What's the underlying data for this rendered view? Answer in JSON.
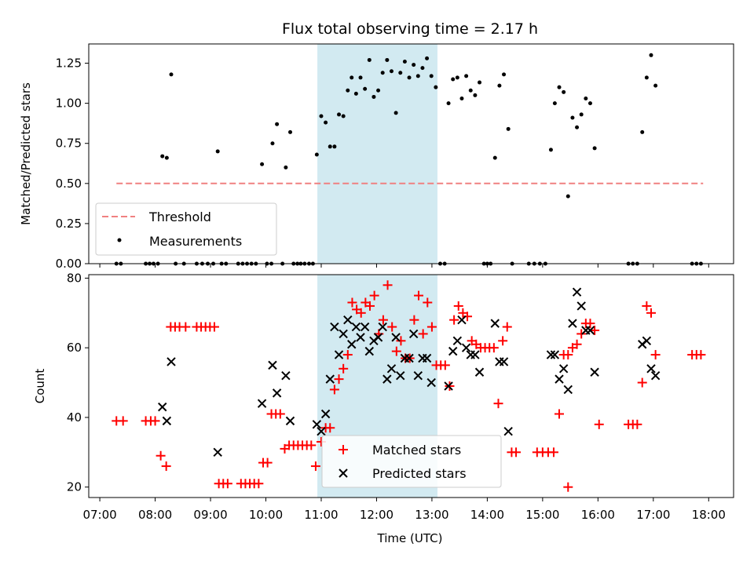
{
  "chart_data": {
    "type": "scatter",
    "title": "Flux total observing time = 2.17 h",
    "xlabel": "Time (UTC)",
    "x_ticks": [
      "07:00",
      "08:00",
      "09:00",
      "10:00",
      "11:00",
      "12:00",
      "13:00",
      "14:00",
      "15:00",
      "16:00",
      "17:00",
      "18:00"
    ],
    "xlim_hours": [
      6.8,
      18.45
    ],
    "highlight_span_hours": [
      10.93,
      13.1
    ],
    "colors": {
      "threshold": "#f08080",
      "matched": "#ff0000",
      "predicted": "#000000",
      "span": "#add8e6"
    },
    "top_panel": {
      "ylabel": "Matched/Predicted stars",
      "ylim": [
        0,
        1.37
      ],
      "y_ticks": [
        "0.00",
        "0.25",
        "0.50",
        "0.75",
        "1.00",
        "1.25"
      ],
      "threshold": {
        "name": "Threshold",
        "value": 0.5,
        "x_range": [
          7.3,
          17.9
        ]
      },
      "measurements_name": "Measurements",
      "measurements": [
        [
          7.3,
          0
        ],
        [
          7.38,
          0
        ],
        [
          7.83,
          0
        ],
        [
          7.9,
          0
        ],
        [
          7.97,
          0
        ],
        [
          8.05,
          0
        ],
        [
          8.13,
          0.67
        ],
        [
          8.21,
          0.66
        ],
        [
          8.29,
          1.18
        ],
        [
          8.37,
          0
        ],
        [
          8.52,
          0
        ],
        [
          8.75,
          0
        ],
        [
          8.85,
          0
        ],
        [
          8.95,
          0
        ],
        [
          9.05,
          0
        ],
        [
          9.13,
          0.7
        ],
        [
          9.2,
          0
        ],
        [
          9.28,
          0
        ],
        [
          9.5,
          0
        ],
        [
          9.58,
          0
        ],
        [
          9.66,
          0
        ],
        [
          9.74,
          0
        ],
        [
          9.82,
          0
        ],
        [
          9.93,
          0.62
        ],
        [
          10.02,
          0
        ],
        [
          10.1,
          0
        ],
        [
          10.12,
          0.75
        ],
        [
          10.2,
          0.87
        ],
        [
          10.3,
          0
        ],
        [
          10.36,
          0.6
        ],
        [
          10.44,
          0.82
        ],
        [
          10.5,
          0
        ],
        [
          10.57,
          0
        ],
        [
          10.63,
          0
        ],
        [
          10.7,
          0
        ],
        [
          10.78,
          0
        ],
        [
          10.85,
          0
        ],
        [
          10.92,
          0.68
        ],
        [
          11.0,
          0.92
        ],
        [
          11.08,
          0.88
        ],
        [
          11.16,
          0.73
        ],
        [
          11.24,
          0.73
        ],
        [
          11.32,
          0.93
        ],
        [
          11.4,
          0.92
        ],
        [
          11.48,
          1.08
        ],
        [
          11.55,
          1.16
        ],
        [
          11.63,
          1.06
        ],
        [
          11.71,
          1.16
        ],
        [
          11.79,
          1.09
        ],
        [
          11.87,
          1.27
        ],
        [
          11.95,
          1.04
        ],
        [
          12.03,
          1.08
        ],
        [
          12.11,
          1.19
        ],
        [
          12.19,
          1.27
        ],
        [
          12.27,
          1.2
        ],
        [
          12.35,
          0.94
        ],
        [
          12.43,
          1.19
        ],
        [
          12.51,
          1.26
        ],
        [
          12.59,
          1.16
        ],
        [
          12.67,
          1.24
        ],
        [
          12.75,
          1.17
        ],
        [
          12.83,
          1.22
        ],
        [
          12.91,
          1.28
        ],
        [
          12.99,
          1.17
        ],
        [
          13.07,
          1.1
        ],
        [
          13.15,
          0
        ],
        [
          13.23,
          0
        ],
        [
          13.3,
          1.0
        ],
        [
          13.38,
          1.15
        ],
        [
          13.46,
          1.16
        ],
        [
          13.54,
          1.03
        ],
        [
          13.62,
          1.17
        ],
        [
          13.7,
          1.08
        ],
        [
          13.78,
          1.05
        ],
        [
          13.86,
          1.13
        ],
        [
          13.94,
          0
        ],
        [
          14.0,
          0
        ],
        [
          14.06,
          0
        ],
        [
          14.14,
          0.66
        ],
        [
          14.22,
          1.11
        ],
        [
          14.3,
          1.18
        ],
        [
          14.38,
          0.84
        ],
        [
          14.45,
          0
        ],
        [
          14.75,
          0
        ],
        [
          14.85,
          0
        ],
        [
          14.95,
          0
        ],
        [
          15.05,
          0
        ],
        [
          15.15,
          0.71
        ],
        [
          15.22,
          1.0
        ],
        [
          15.3,
          1.1
        ],
        [
          15.38,
          1.07
        ],
        [
          15.46,
          0.42
        ],
        [
          15.54,
          0.91
        ],
        [
          15.62,
          0.85
        ],
        [
          15.7,
          0.93
        ],
        [
          15.78,
          1.03
        ],
        [
          15.86,
          1.0
        ],
        [
          15.94,
          0.72
        ],
        [
          16.55,
          0
        ],
        [
          16.63,
          0
        ],
        [
          16.71,
          0
        ],
        [
          16.8,
          0.82
        ],
        [
          16.88,
          1.16
        ],
        [
          16.96,
          1.3
        ],
        [
          17.04,
          1.11
        ],
        [
          17.7,
          0
        ],
        [
          17.78,
          0
        ],
        [
          17.86,
          0
        ]
      ]
    },
    "bottom_panel": {
      "ylabel": "Count",
      "ylim": [
        17,
        81
      ],
      "y_ticks": [
        "20",
        "40",
        "60",
        "80"
      ],
      "matched_name": "Matched stars",
      "predicted_name": "Predicted stars",
      "matched": [
        [
          7.3,
          39
        ],
        [
          7.42,
          39
        ],
        [
          7.83,
          39
        ],
        [
          7.92,
          39
        ],
        [
          8.0,
          39
        ],
        [
          8.1,
          29
        ],
        [
          8.2,
          26
        ],
        [
          8.28,
          66
        ],
        [
          8.36,
          66
        ],
        [
          8.44,
          66
        ],
        [
          8.55,
          66
        ],
        [
          8.75,
          66
        ],
        [
          8.83,
          66
        ],
        [
          8.91,
          66
        ],
        [
          8.99,
          66
        ],
        [
          9.07,
          66
        ],
        [
          9.15,
          21
        ],
        [
          9.23,
          21
        ],
        [
          9.31,
          21
        ],
        [
          9.55,
          21
        ],
        [
          9.63,
          21
        ],
        [
          9.71,
          21
        ],
        [
          9.79,
          21
        ],
        [
          9.87,
          21
        ],
        [
          9.95,
          27
        ],
        [
          10.03,
          27
        ],
        [
          10.1,
          41
        ],
        [
          10.18,
          41
        ],
        [
          10.26,
          41
        ],
        [
          10.34,
          31
        ],
        [
          10.42,
          32
        ],
        [
          10.5,
          32
        ],
        [
          10.58,
          32
        ],
        [
          10.66,
          32
        ],
        [
          10.74,
          32
        ],
        [
          10.82,
          32
        ],
        [
          10.9,
          26
        ],
        [
          11.0,
          33
        ],
        [
          11.08,
          37
        ],
        [
          11.16,
          37
        ],
        [
          11.24,
          48
        ],
        [
          11.32,
          51
        ],
        [
          11.4,
          54
        ],
        [
          11.48,
          58
        ],
        [
          11.56,
          73
        ],
        [
          11.64,
          71
        ],
        [
          11.72,
          70
        ],
        [
          11.8,
          73
        ],
        [
          11.88,
          72
        ],
        [
          11.96,
          75
        ],
        [
          12.04,
          64
        ],
        [
          12.12,
          68
        ],
        [
          12.2,
          78
        ],
        [
          12.28,
          66
        ],
        [
          12.36,
          59
        ],
        [
          12.44,
          62
        ],
        [
          12.52,
          57
        ],
        [
          12.6,
          57
        ],
        [
          12.68,
          68
        ],
        [
          12.76,
          75
        ],
        [
          12.84,
          64
        ],
        [
          12.92,
          73
        ],
        [
          13.0,
          66
        ],
        [
          13.08,
          55
        ],
        [
          13.16,
          55
        ],
        [
          13.24,
          55
        ],
        [
          13.32,
          49
        ],
        [
          13.4,
          68
        ],
        [
          13.48,
          72
        ],
        [
          13.56,
          70
        ],
        [
          13.64,
          69
        ],
        [
          13.72,
          62
        ],
        [
          13.8,
          61
        ],
        [
          13.88,
          60
        ],
        [
          13.96,
          60
        ],
        [
          14.04,
          60
        ],
        [
          14.12,
          60
        ],
        [
          14.2,
          44
        ],
        [
          14.28,
          62
        ],
        [
          14.36,
          66
        ],
        [
          14.44,
          30
        ],
        [
          14.52,
          30
        ],
        [
          14.9,
          30
        ],
        [
          15.0,
          30
        ],
        [
          15.1,
          30
        ],
        [
          15.2,
          30
        ],
        [
          15.3,
          41
        ],
        [
          15.38,
          58
        ],
        [
          15.46,
          58
        ],
        [
          15.54,
          60
        ],
        [
          15.62,
          61
        ],
        [
          15.7,
          64
        ],
        [
          15.78,
          67
        ],
        [
          15.86,
          67
        ],
        [
          15.94,
          65
        ],
        [
          16.02,
          38
        ],
        [
          16.55,
          38
        ],
        [
          16.63,
          38
        ],
        [
          16.71,
          38
        ],
        [
          16.8,
          50
        ],
        [
          16.88,
          72
        ],
        [
          16.96,
          70
        ],
        [
          17.04,
          58
        ],
        [
          17.7,
          58
        ],
        [
          17.78,
          58
        ],
        [
          17.86,
          58
        ],
        [
          15.46,
          20
        ]
      ],
      "predicted": [
        [
          8.13,
          43
        ],
        [
          8.21,
          39
        ],
        [
          8.29,
          56
        ],
        [
          9.13,
          30
        ],
        [
          9.93,
          44
        ],
        [
          10.12,
          55
        ],
        [
          10.2,
          47
        ],
        [
          10.36,
          52
        ],
        [
          10.44,
          39
        ],
        [
          10.92,
          38
        ],
        [
          11.0,
          36
        ],
        [
          11.08,
          41
        ],
        [
          11.16,
          51
        ],
        [
          11.24,
          66
        ],
        [
          11.32,
          58
        ],
        [
          11.4,
          64
        ],
        [
          11.48,
          68
        ],
        [
          11.55,
          61
        ],
        [
          11.63,
          66
        ],
        [
          11.71,
          63
        ],
        [
          11.79,
          66
        ],
        [
          11.87,
          59
        ],
        [
          11.95,
          62
        ],
        [
          12.03,
          63
        ],
        [
          12.11,
          66
        ],
        [
          12.19,
          51
        ],
        [
          12.27,
          54
        ],
        [
          12.35,
          63
        ],
        [
          12.43,
          52
        ],
        [
          12.51,
          57
        ],
        [
          12.59,
          57
        ],
        [
          12.67,
          64
        ],
        [
          12.75,
          52
        ],
        [
          12.83,
          57
        ],
        [
          12.91,
          57
        ],
        [
          12.99,
          50
        ],
        [
          13.3,
          49
        ],
        [
          13.38,
          59
        ],
        [
          13.46,
          62
        ],
        [
          13.54,
          68
        ],
        [
          13.62,
          60
        ],
        [
          13.7,
          58
        ],
        [
          13.78,
          58
        ],
        [
          13.86,
          53
        ],
        [
          14.14,
          67
        ],
        [
          14.22,
          56
        ],
        [
          14.3,
          56
        ],
        [
          14.38,
          36
        ],
        [
          15.15,
          58
        ],
        [
          15.22,
          58
        ],
        [
          15.3,
          51
        ],
        [
          15.38,
          54
        ],
        [
          15.46,
          48
        ],
        [
          15.54,
          67
        ],
        [
          15.62,
          76
        ],
        [
          15.7,
          72
        ],
        [
          15.78,
          65
        ],
        [
          15.86,
          65
        ],
        [
          15.94,
          53
        ],
        [
          16.8,
          61
        ],
        [
          16.88,
          62
        ],
        [
          16.96,
          54
        ],
        [
          17.04,
          52
        ]
      ]
    }
  }
}
